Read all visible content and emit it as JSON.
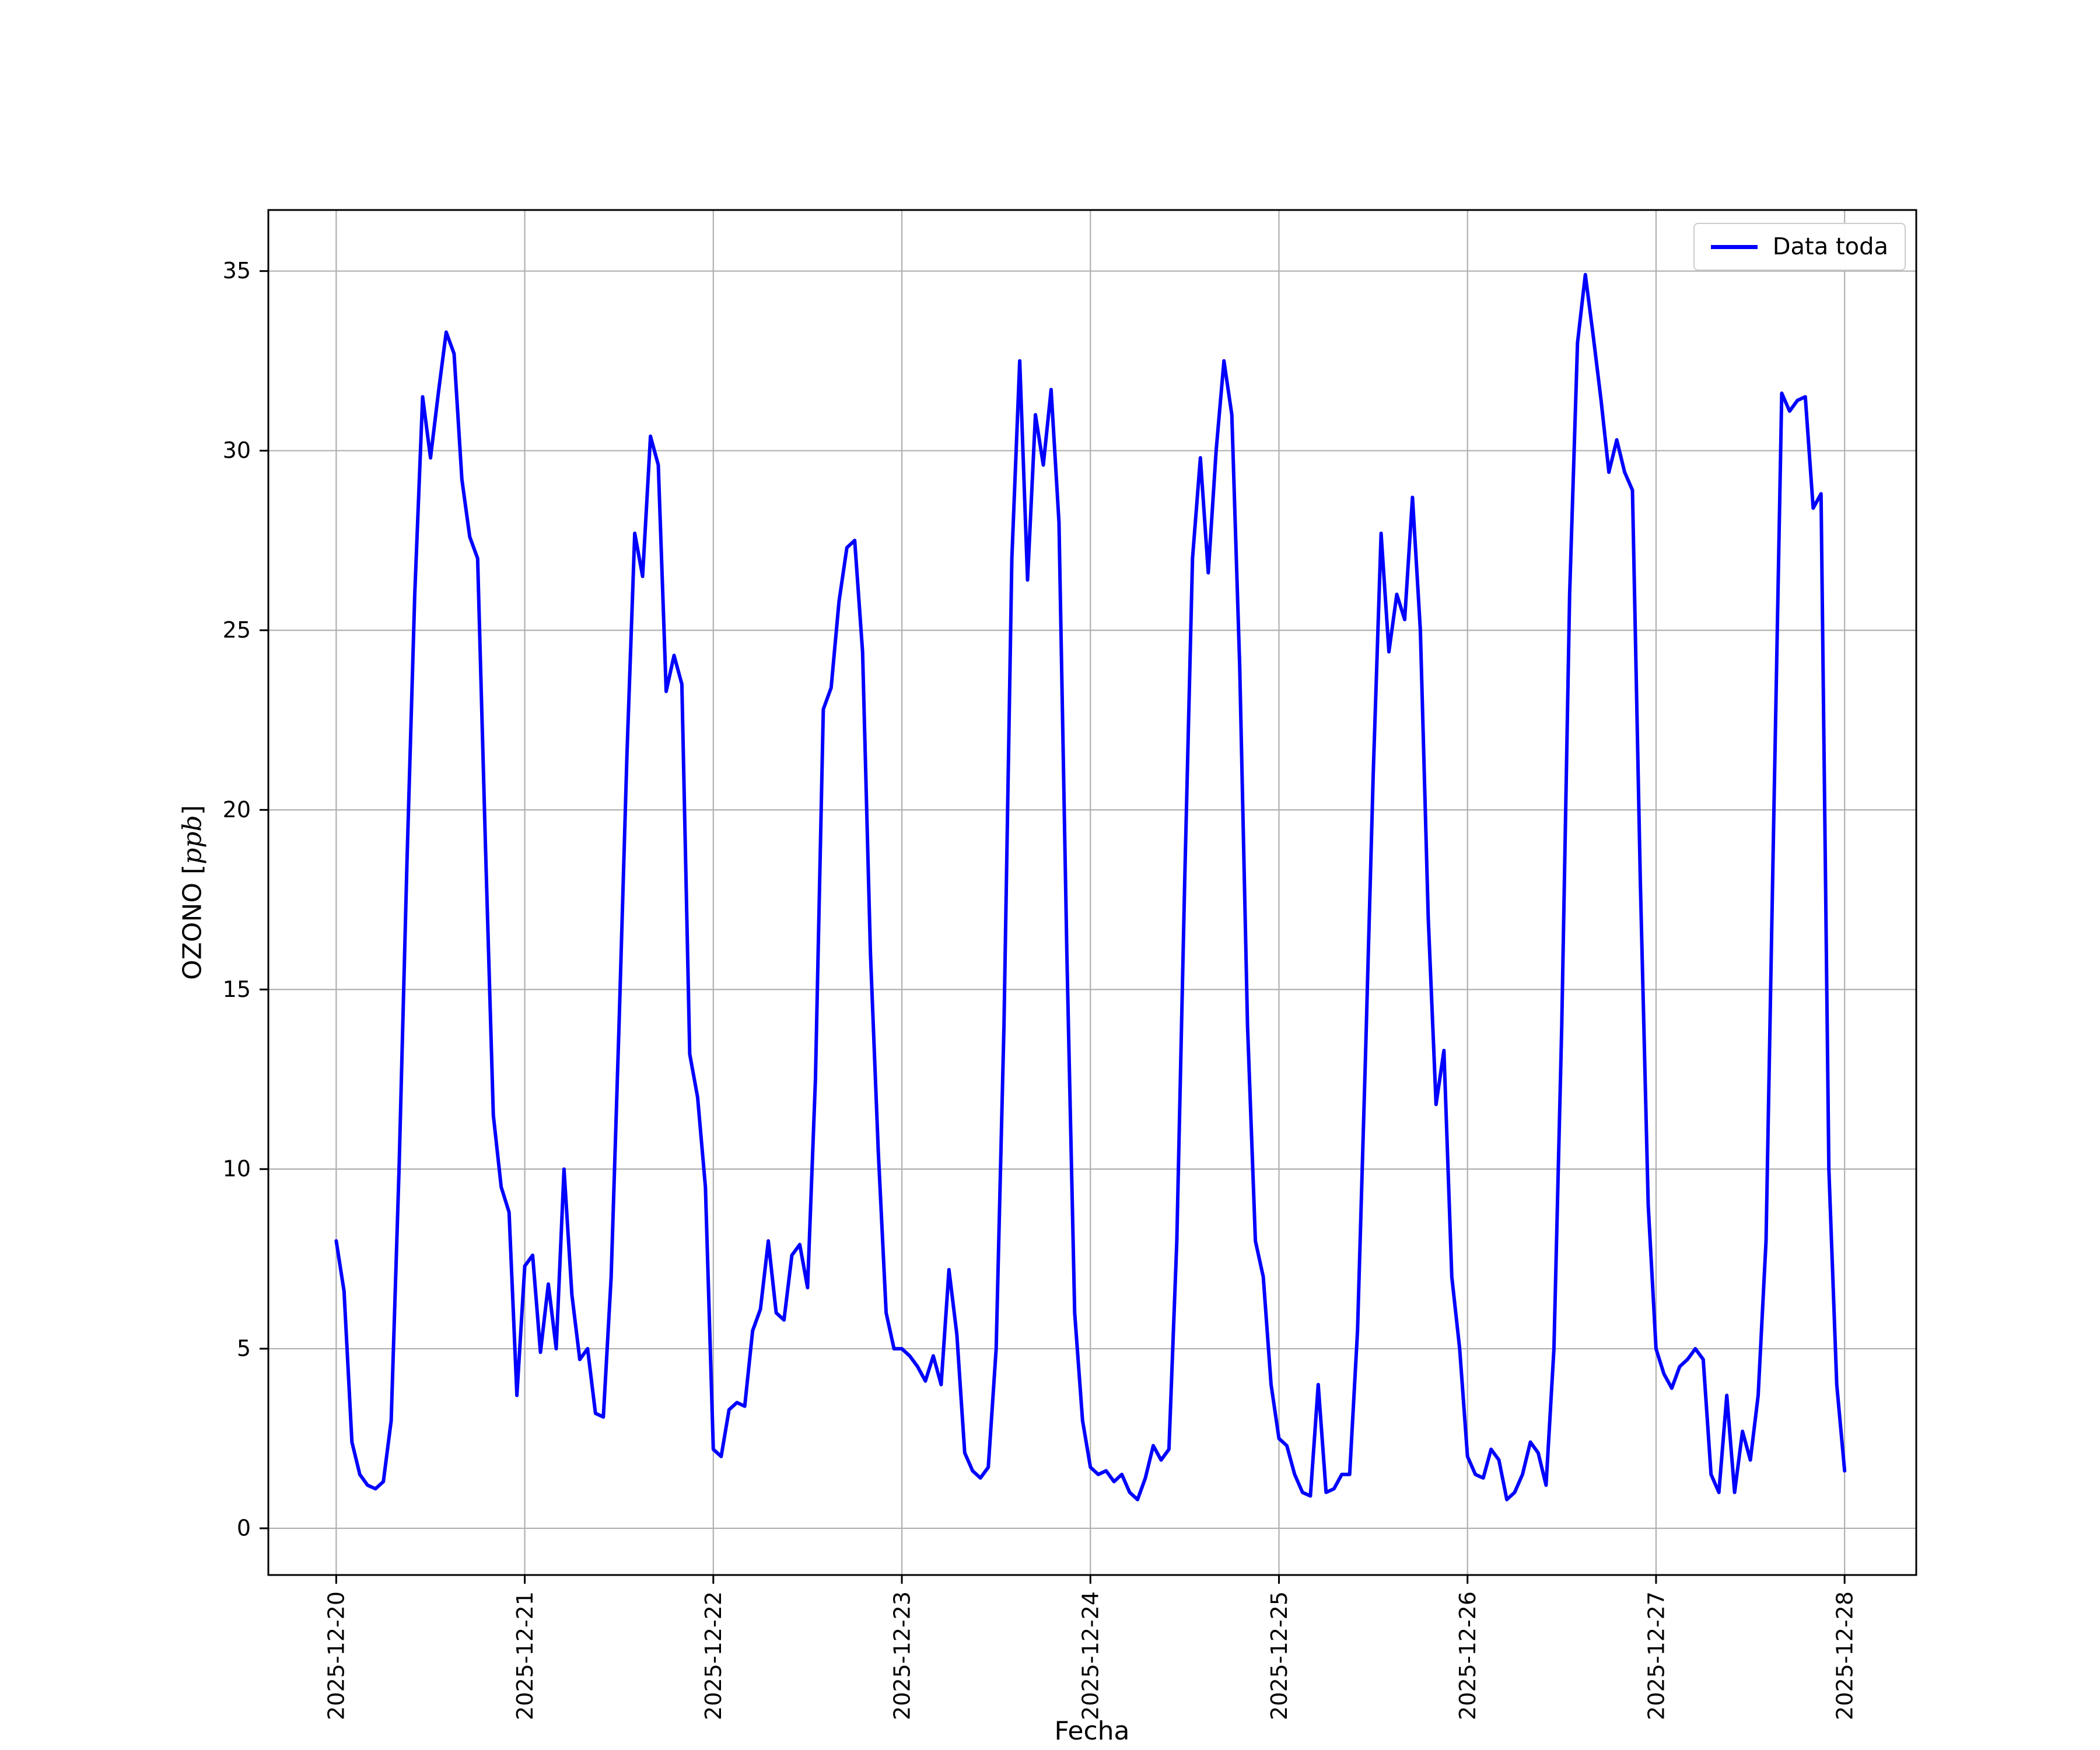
{
  "chart_data": {
    "type": "line",
    "title": "",
    "xlabel": "Fecha",
    "ylabel": "OZONO [ppb]",
    "ylabel_parts": {
      "prefix": "OZONO [",
      "italic": "ppb",
      "suffix": "]"
    },
    "legend": {
      "position": "upper right",
      "entries": [
        {
          "label": "Data toda",
          "color": "#0000ff"
        }
      ]
    },
    "grid": true,
    "grid_color": "#b0b0b0",
    "line_color": "#0000ff",
    "background_color": "#ffffff",
    "x_start_date": "2025-12-20",
    "x_end_date": "2025-12-28",
    "sample_interval_hours": 1,
    "x_tick_labels": [
      "2025-12-20",
      "2025-12-21",
      "2025-12-22",
      "2025-12-23",
      "2025-12-24",
      "2025-12-25",
      "2025-12-26",
      "2025-12-27",
      "2025-12-28"
    ],
    "y_ticks": [
      0,
      5,
      10,
      15,
      20,
      25,
      30,
      35
    ],
    "xlim_days": [
      -0.36,
      8.38
    ],
    "ylim": [
      -1.3,
      36.7
    ],
    "series": [
      {
        "name": "Data toda",
        "values": [
          8.0,
          6.6,
          2.4,
          1.5,
          1.2,
          1.1,
          1.3,
          3.0,
          10.0,
          18.5,
          26.0,
          31.5,
          29.8,
          31.6,
          33.3,
          32.7,
          29.2,
          27.6,
          27.0,
          19.0,
          11.5,
          9.5,
          8.8,
          3.7,
          7.3,
          7.6,
          4.9,
          6.8,
          5.0,
          10.0,
          6.5,
          4.7,
          5.0,
          3.2,
          3.1,
          7.0,
          14.0,
          21.5,
          27.7,
          26.5,
          30.4,
          29.6,
          23.3,
          24.3,
          23.5,
          13.2,
          12.0,
          9.5,
          2.2,
          2.0,
          3.3,
          3.5,
          3.4,
          5.5,
          6.1,
          8.0,
          6.0,
          5.8,
          7.6,
          7.9,
          6.7,
          12.5,
          22.8,
          23.4,
          25.8,
          27.3,
          27.5,
          24.4,
          16.0,
          10.5,
          6.0,
          5.0,
          5.0,
          4.8,
          4.5,
          4.1,
          4.8,
          4.0,
          7.2,
          5.4,
          2.1,
          1.6,
          1.4,
          1.7,
          5.0,
          14.0,
          27.0,
          32.5,
          26.4,
          31.0,
          29.6,
          31.7,
          28.0,
          16.0,
          6.0,
          3.0,
          1.7,
          1.5,
          1.6,
          1.3,
          1.5,
          1.0,
          0.8,
          1.4,
          2.3,
          1.9,
          2.2,
          8.0,
          18.0,
          27.0,
          29.8,
          26.6,
          30.0,
          32.5,
          31.0,
          24.0,
          14.0,
          8.0,
          7.0,
          4.0,
          2.5,
          2.3,
          1.5,
          1.0,
          0.9,
          4.0,
          1.0,
          1.1,
          1.5,
          1.5,
          5.5,
          13.0,
          21.0,
          27.7,
          24.4,
          26.0,
          25.3,
          28.7,
          25.0,
          17.0,
          11.8,
          13.3,
          7.0,
          5.0,
          2.0,
          1.5,
          1.4,
          2.2,
          1.9,
          0.8,
          1.0,
          1.5,
          2.4,
          2.1,
          1.2,
          5.0,
          14.0,
          26.0,
          33.0,
          34.9,
          33.2,
          31.4,
          29.4,
          30.3,
          29.4,
          28.9,
          18.0,
          9.0,
          5.0,
          4.3,
          3.9,
          4.5,
          4.7,
          5.0,
          4.7,
          1.5,
          1.0,
          3.7,
          1.0,
          2.7,
          1.9,
          3.7,
          8.0,
          20.0,
          31.6,
          31.1,
          31.4,
          31.5,
          28.4,
          28.8,
          10.0,
          4.0,
          1.6
        ]
      }
    ]
  }
}
